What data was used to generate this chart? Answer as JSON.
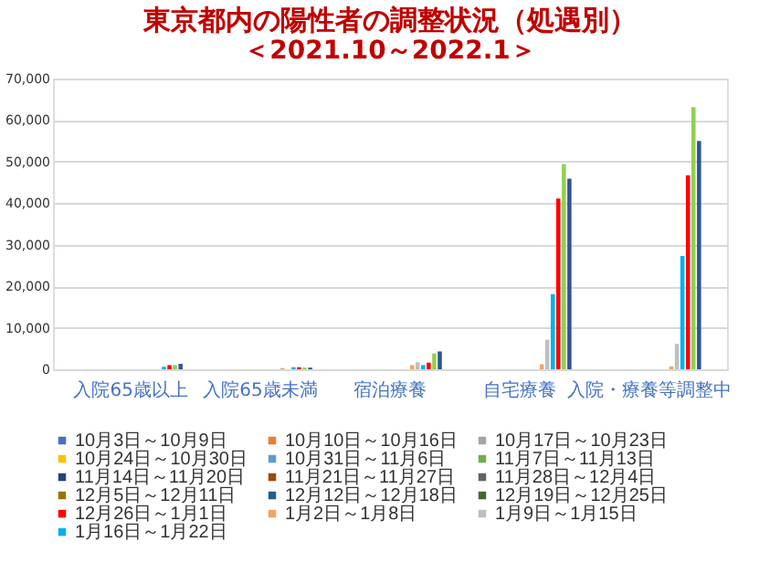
{
  "chart_data": {
    "type": "bar",
    "title": "東京都内の陽性者の調整状況（処遇別）",
    "subtitle": "＜2021.10～2022.1＞",
    "categories": [
      "入院65歳以上",
      "入院65歳未満",
      "宿泊療養",
      "自宅療養",
      "入院・療養等調整中"
    ],
    "ylim": [
      0,
      70000
    ],
    "yticks": [
      {
        "value": 0,
        "label": "0"
      },
      {
        "value": 10000,
        "label": "10,000"
      },
      {
        "value": 20000,
        "label": "20,000"
      },
      {
        "value": 30000,
        "label": "30,000"
      },
      {
        "value": 40000,
        "label": "40,000"
      },
      {
        "value": 50000,
        "label": "50,000"
      },
      {
        "value": 60000,
        "label": "60,000"
      },
      {
        "value": 70000,
        "label": "70,000"
      }
    ],
    "grid": "y",
    "legend": "bottom",
    "series": [
      {
        "name": "10月3日～10月9日",
        "color": "#4472c4",
        "values": [
          null,
          null,
          null,
          null,
          null
        ]
      },
      {
        "name": "10月10日～10月16日",
        "color": "#ed7d31",
        "values": [
          null,
          null,
          null,
          null,
          null
        ]
      },
      {
        "name": "10月17日～10月23日",
        "color": "#a5a5a5",
        "values": [
          null,
          null,
          null,
          null,
          null
        ]
      },
      {
        "name": "10月24日～10月30日",
        "color": "#ffc000",
        "values": [
          null,
          null,
          null,
          null,
          null
        ]
      },
      {
        "name": "10月31日～11月6日",
        "color": "#5b9bd5",
        "values": [
          null,
          null,
          null,
          null,
          null
        ]
      },
      {
        "name": "11月7日～11月13日",
        "color": "#70ad47",
        "values": [
          null,
          null,
          null,
          null,
          null
        ]
      },
      {
        "name": "11月14日～11月20日",
        "color": "#264478",
        "values": [
          null,
          null,
          null,
          null,
          null
        ]
      },
      {
        "name": "11月21日～11月27日",
        "color": "#9e480e",
        "values": [
          null,
          null,
          null,
          null,
          null
        ]
      },
      {
        "name": "11月28日～12月4日",
        "color": "#636363",
        "values": [
          null,
          null,
          null,
          null,
          null
        ]
      },
      {
        "name": "12月5日～12月11日",
        "color": "#997300",
        "values": [
          null,
          null,
          null,
          null,
          null
        ]
      },
      {
        "name": "12月12日～12月18日",
        "color": "#255e91",
        "values": [
          null,
          null,
          null,
          null,
          null
        ]
      },
      {
        "name": "12月19日～12月25日",
        "color": "#43682b",
        "values": [
          null,
          null,
          null,
          null,
          null
        ]
      },
      {
        "name": "12月26日～1月1日",
        "color": "#ff0000",
        "values": [
          null,
          null,
          null,
          null,
          null
        ]
      },
      {
        "name": "1月2日～1月8日",
        "color": "#f4a460",
        "values": [
          null,
          300,
          1000,
          1200,
          700
        ]
      },
      {
        "name": "1月9日～1月15日",
        "color": "#bfbfbf",
        "values": [
          null,
          null,
          1700,
          7100,
          6100
        ]
      },
      {
        "name": "1月16日～1月22日",
        "color": "#00b0f0",
        "values": [
          600,
          500,
          1000,
          18100,
          27300
        ]
      },
      {
        "color": "#ff0000",
        "values": [
          1000,
          500,
          1600,
          41100,
          46700
        ]
      },
      {
        "color": "#92d050",
        "values": [
          1000,
          400,
          3800,
          49400,
          63100
        ]
      },
      {
        "color": "#2f5597",
        "values": [
          1300,
          400,
          4300,
          45900,
          55000
        ]
      }
    ]
  }
}
